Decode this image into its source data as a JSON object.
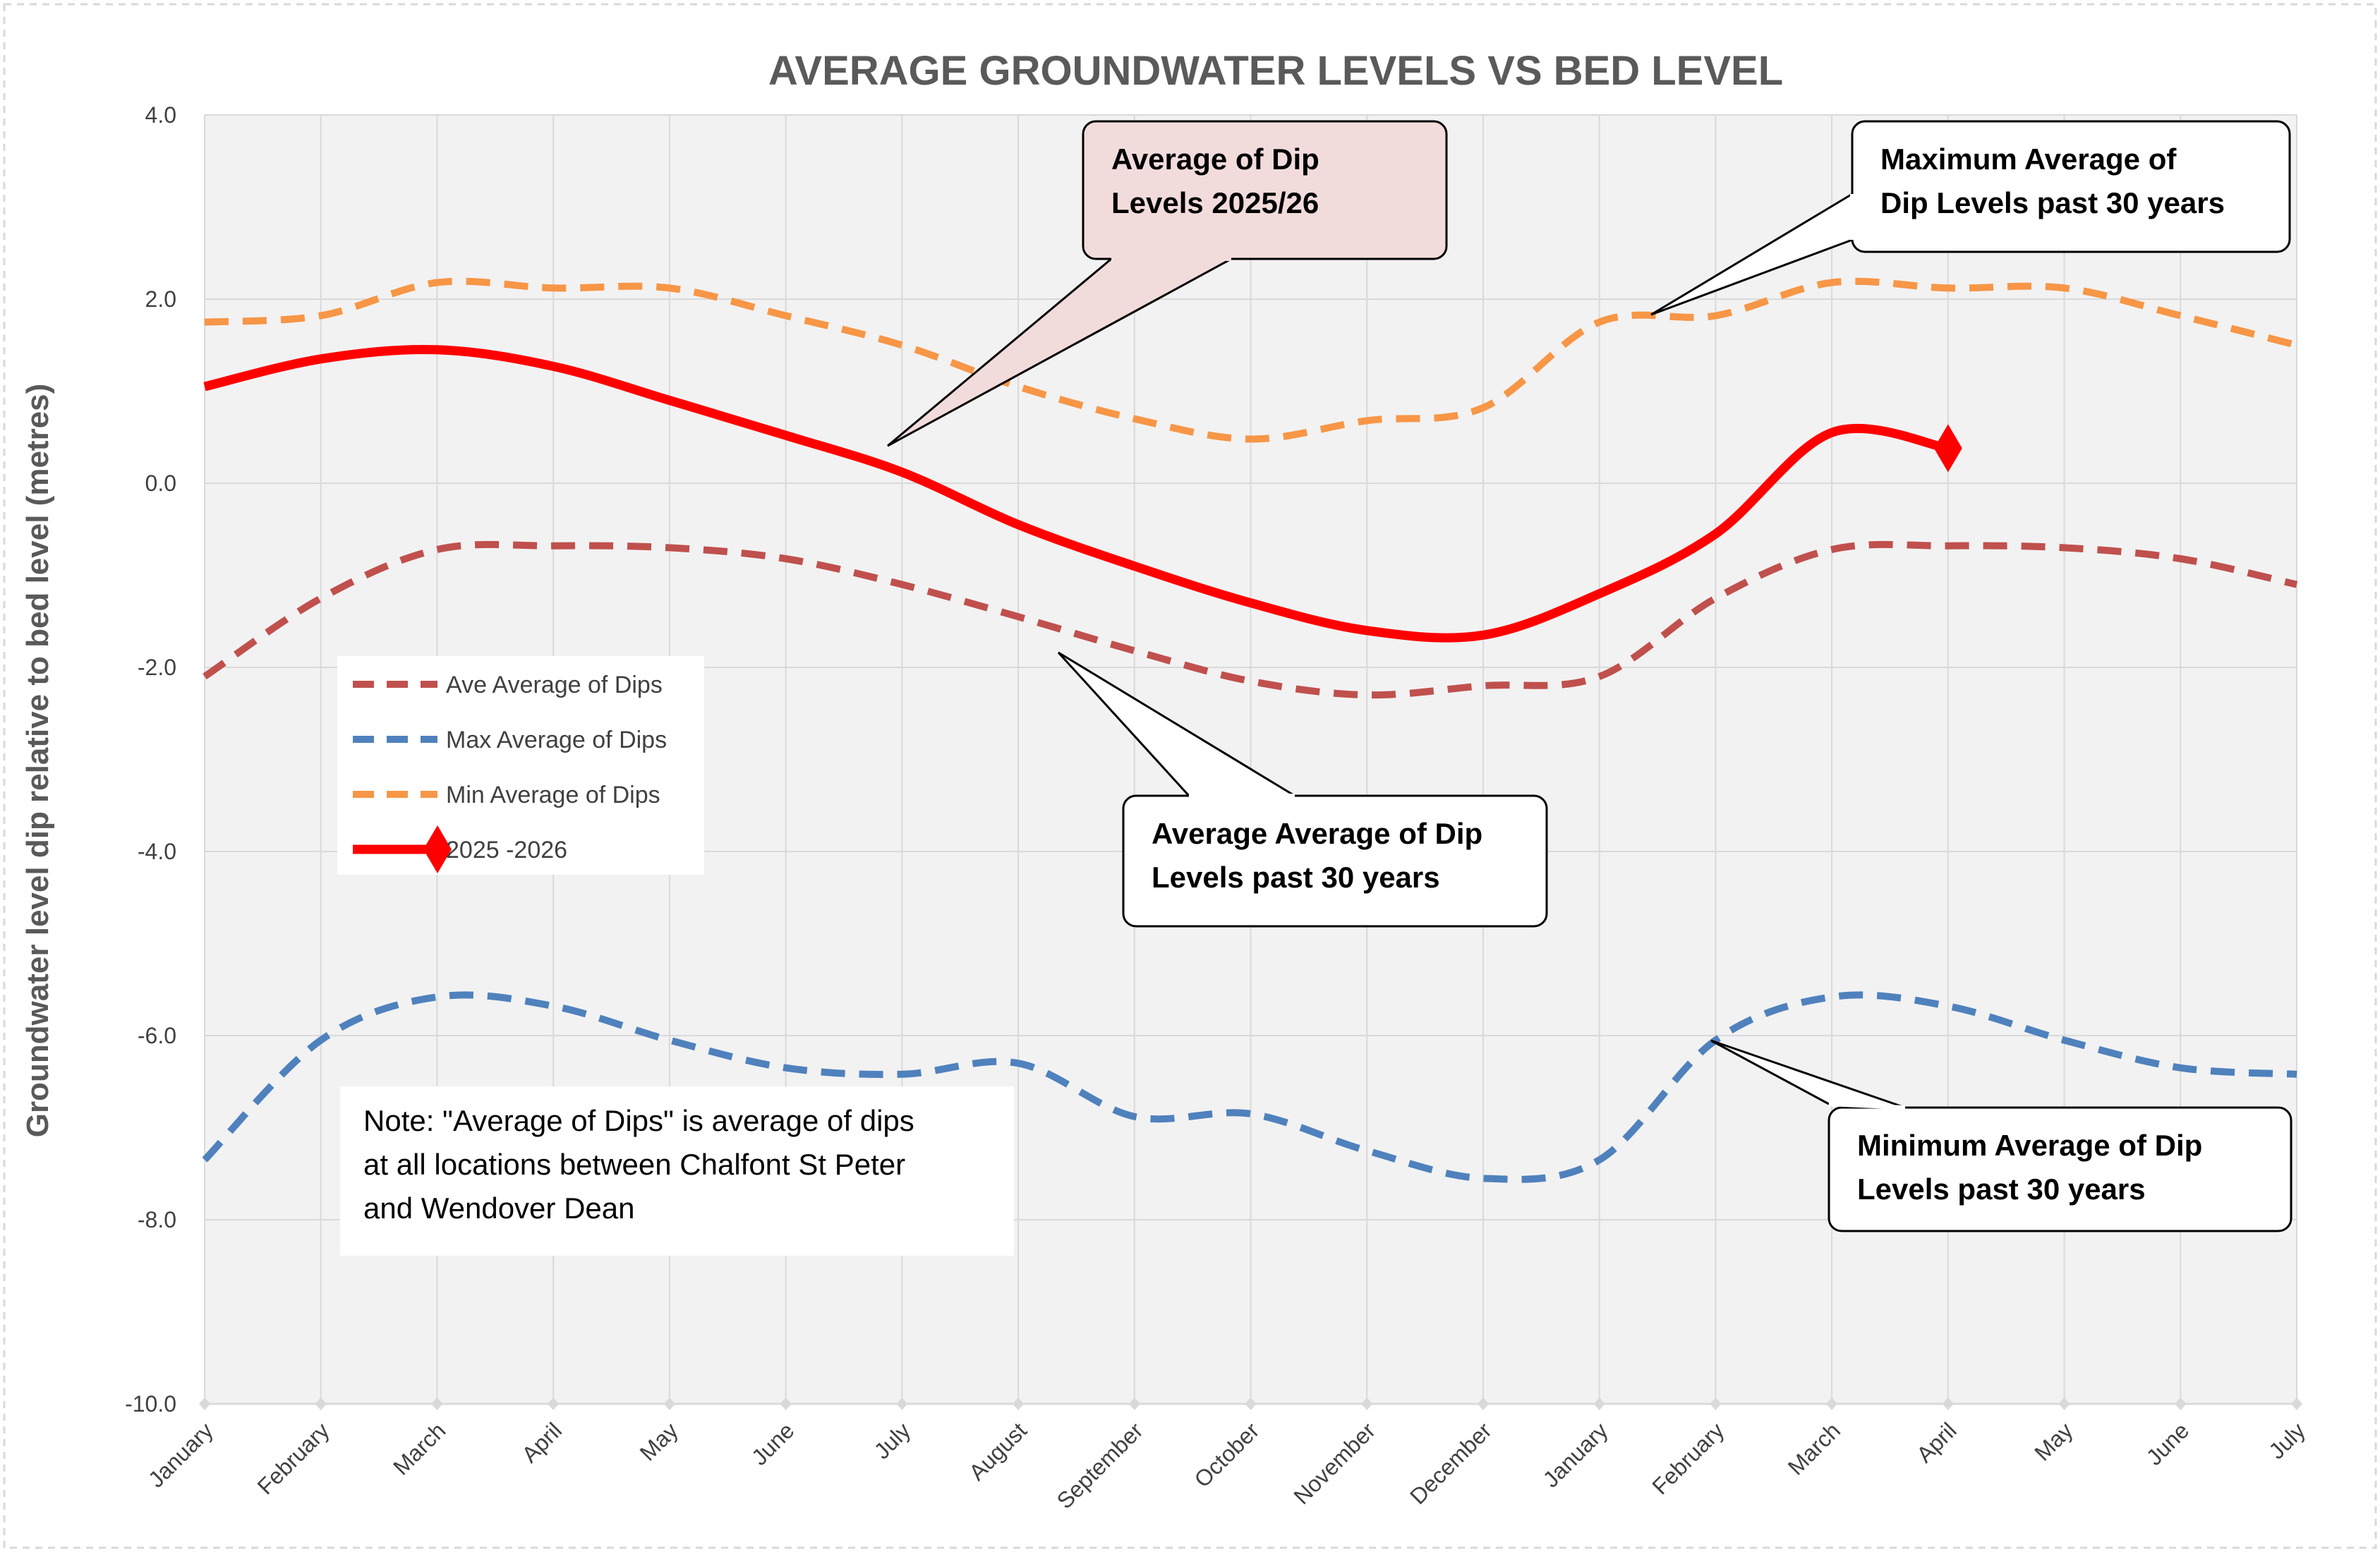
{
  "chart_data": {
    "type": "line",
    "title": "AVERAGE GROUNDWATER LEVELS VS BED LEVEL",
    "xlabel": "",
    "ylabel": "Groundwater level dip relative to bed level (metres)",
    "ylim": [
      -10,
      4
    ],
    "yticks": [
      "4.0",
      "2.0",
      "0.0",
      "-2.0",
      "-4.0",
      "-6.0",
      "-8.0",
      "-10.0"
    ],
    "ytick_values": [
      4,
      2,
      0,
      -2,
      -4,
      -6,
      -8,
      -10
    ],
    "categories": [
      "January",
      "February",
      "March",
      "April",
      "May",
      "June",
      "July",
      "August",
      "September",
      "October",
      "November",
      "December",
      "January",
      "February",
      "March",
      "April",
      "May",
      "June",
      "July"
    ],
    "grid": true,
    "legend_position": "left",
    "series": [
      {
        "name": "Ave Average of Dips",
        "color": "#c0504d",
        "style": "dashed",
        "values": [
          -2.1,
          -1.25,
          -0.72,
          -0.68,
          -0.7,
          -0.82,
          -1.1,
          -1.45,
          -1.82,
          -2.15,
          -2.3,
          -2.2,
          -2.1,
          -1.25,
          -0.72,
          -0.68,
          -0.7,
          -0.82,
          -1.1
        ]
      },
      {
        "name": "Max Average of Dips",
        "color": "#4f81bd",
        "style": "dashed",
        "values": [
          -7.35,
          -6.05,
          -5.58,
          -5.68,
          -6.05,
          -6.35,
          -6.42,
          -6.3,
          -6.88,
          -6.85,
          -7.25,
          -7.55,
          -7.35,
          -6.05,
          -5.58,
          -5.68,
          -6.05,
          -6.35,
          -6.42
        ]
      },
      {
        "name": "Min Average of Dips",
        "color": "#f79646",
        "style": "dashed",
        "values": [
          1.75,
          1.82,
          2.18,
          2.12,
          2.12,
          1.82,
          1.5,
          1.05,
          0.7,
          0.48,
          0.68,
          0.82,
          1.75,
          1.82,
          2.18,
          2.12,
          2.12,
          1.82,
          1.5
        ]
      },
      {
        "name": "2025 -2026",
        "color": "#ff0000",
        "style": "solid",
        "values": [
          1.05,
          1.35,
          1.45,
          1.27,
          0.9,
          0.52,
          0.12,
          -0.45,
          -0.9,
          -1.3,
          -1.6,
          -1.65,
          -1.2,
          -0.55,
          0.55,
          0.38,
          null,
          null,
          null
        ]
      }
    ],
    "annotations": [
      "Average of Dip Levels 2025/26",
      "Maximum Average of Dip Levels  past 30 years",
      "Average Average of Dip Levels  past 30 years",
      "Minimum Average of Dip Levels  past 30 years"
    ],
    "note": "Note: \"Average of Dips\" is average of dips at all locations between Chalfont St Peter and Wendover Dean"
  },
  "callouts": {
    "c2025": [
      "Average of Dip",
      "Levels 2025/26"
    ],
    "cmax": [
      "Maximum Average of",
      "Dip Levels  past 30 years"
    ],
    "cave": [
      "Average Average of Dip",
      "Levels  past 30 years"
    ],
    "cmin": [
      "Minimum Average of Dip",
      "Levels  past 30 years"
    ]
  },
  "note_lines": [
    "Note: \"Average of Dips\" is average of dips",
    "at all locations between Chalfont St Peter",
    "and Wendover Dean"
  ],
  "colors": {
    "plot_bg": "#f2f2f2",
    "grid": "#d9d9d9",
    "callout_pink": "#f2dcdb"
  }
}
